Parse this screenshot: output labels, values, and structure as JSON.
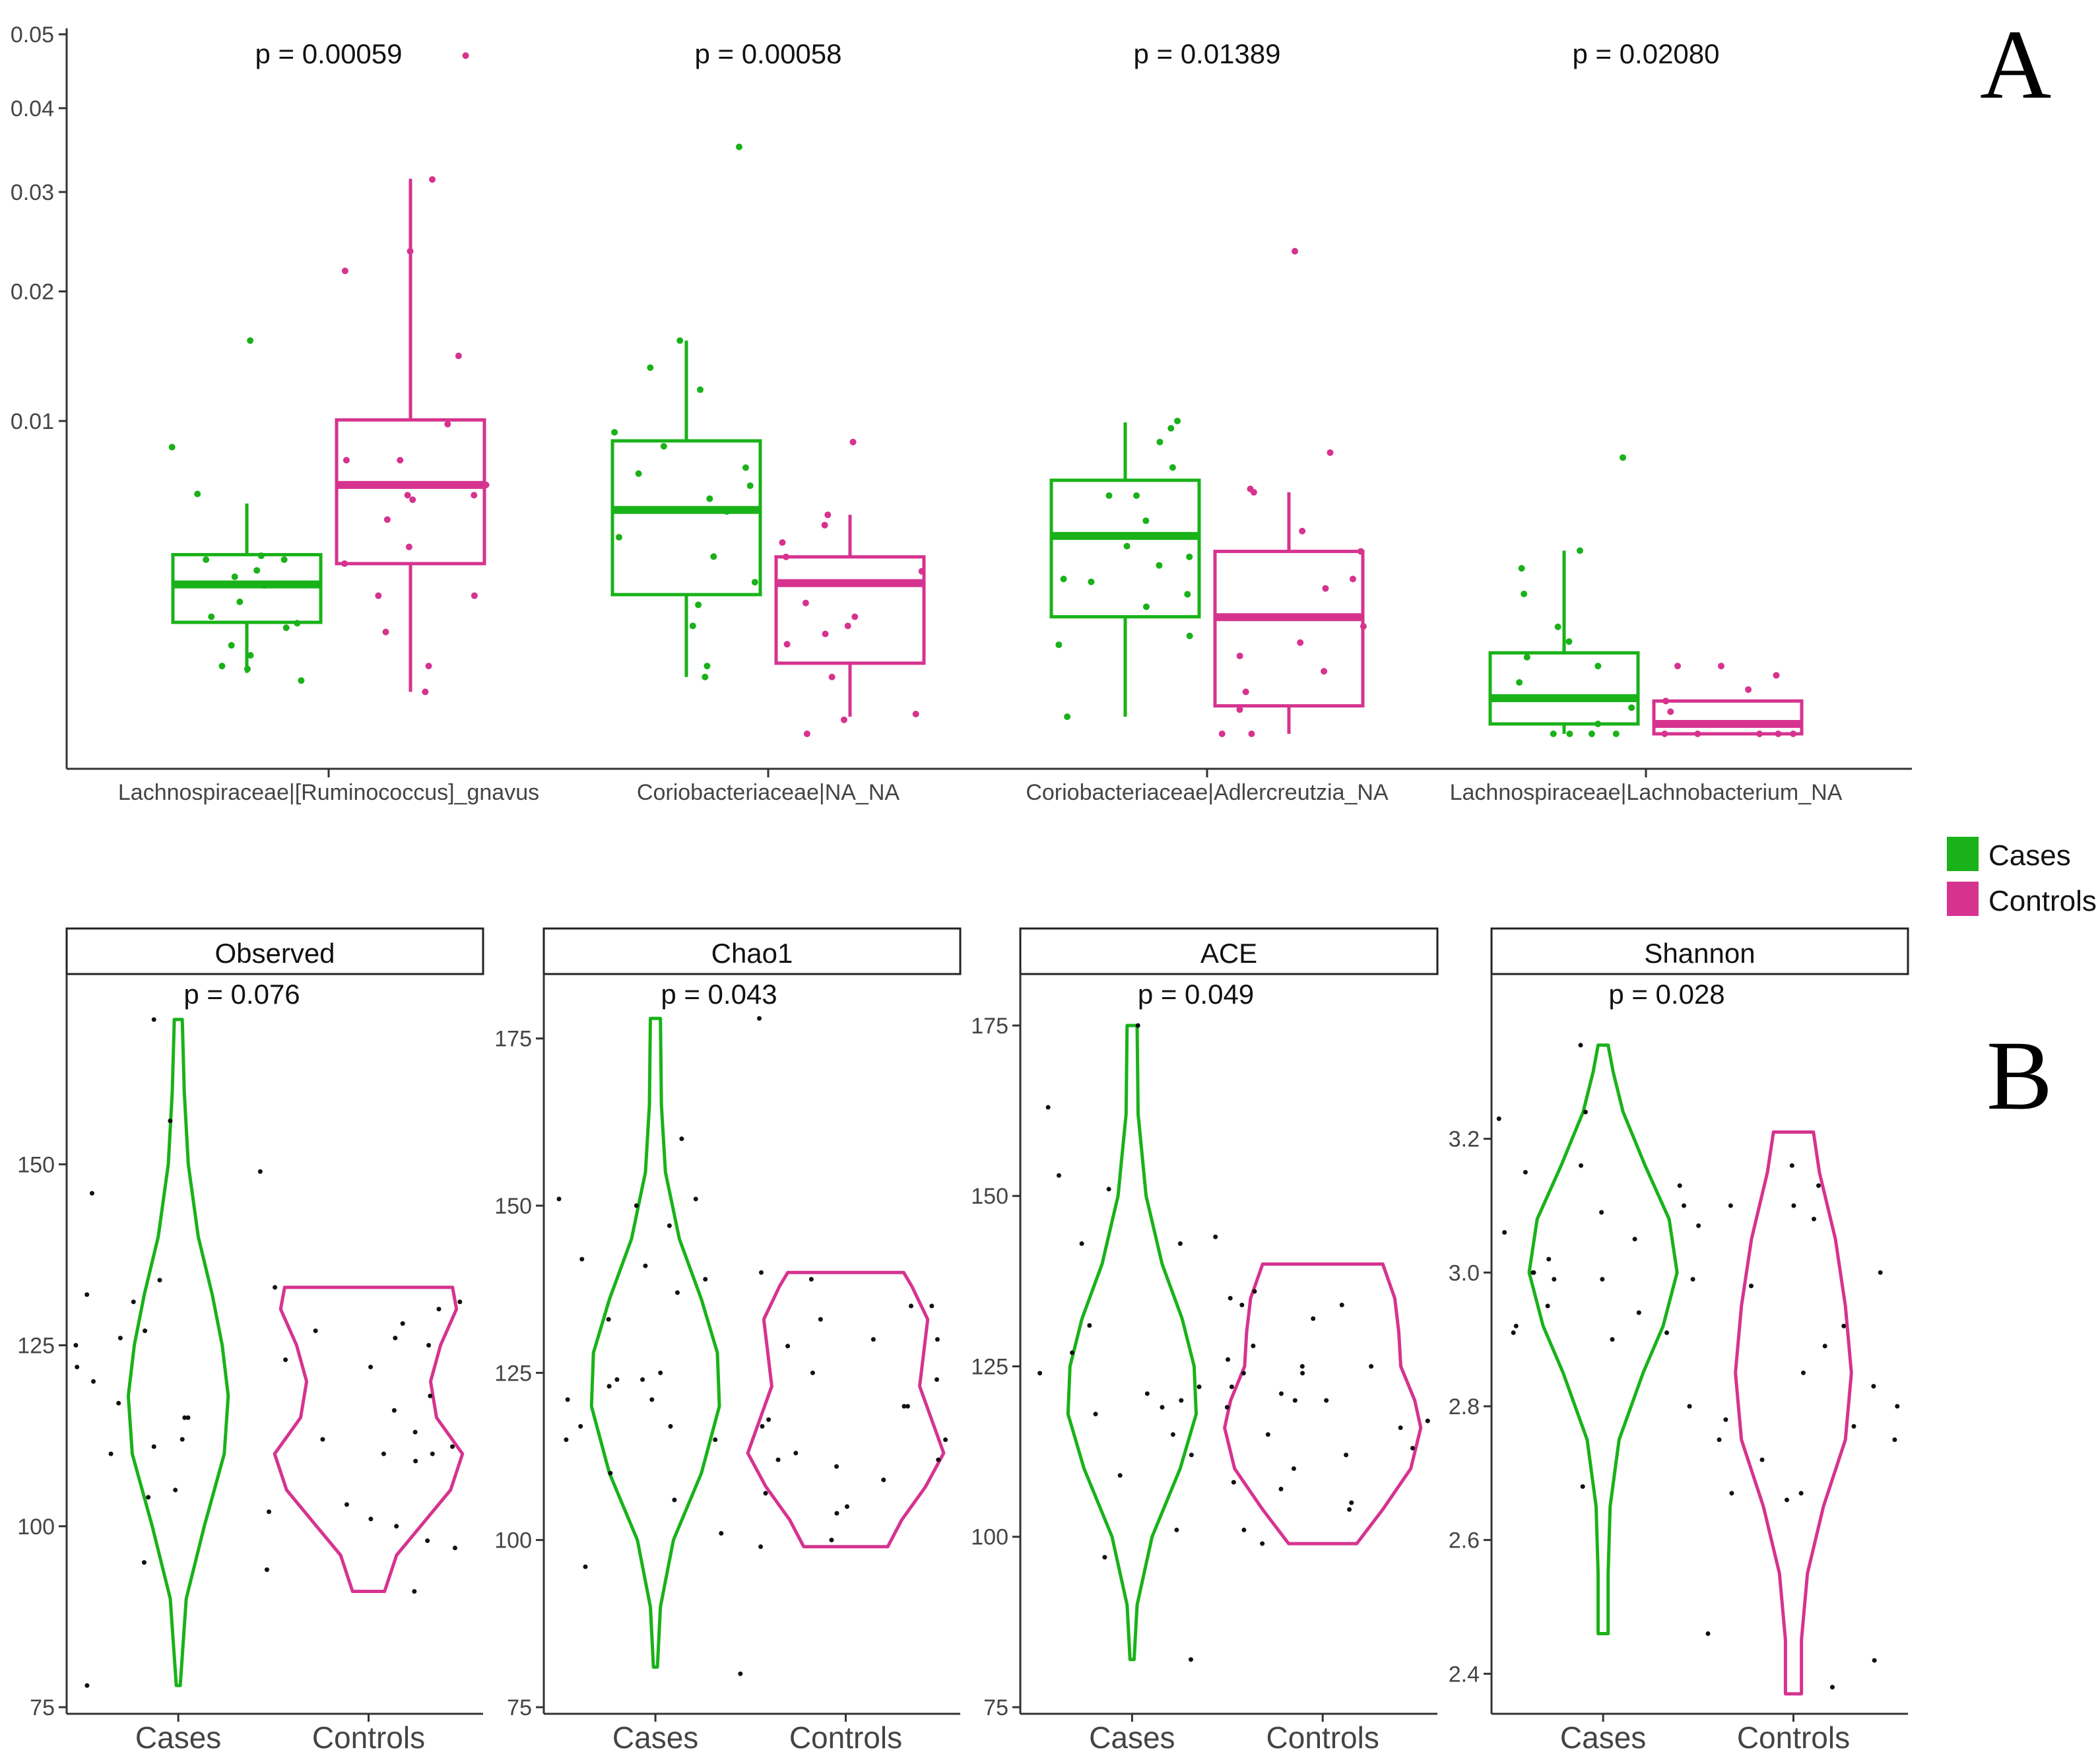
{
  "figure": {
    "panel_a_label": "A",
    "panel_b_label": "B"
  },
  "colors": {
    "cases": "#19b219",
    "controls": "#d6338f",
    "points_b": "#111111"
  },
  "legend": {
    "items": [
      {
        "label": "Cases",
        "color": "#19b219"
      },
      {
        "label": "Controls",
        "color": "#d6338f"
      }
    ]
  },
  "chart_data": [
    {
      "type": "box",
      "panel": "A",
      "scale": "sqrt",
      "ylim": [
        0,
        0.05
      ],
      "yticks": [
        0.01,
        0.02,
        0.03,
        0.04,
        0.05
      ],
      "ytick_labels": [
        "0.01",
        "0.02",
        "0.03",
        "0.04",
        "0.05"
      ],
      "series_names": [
        "Cases",
        "Controls"
      ],
      "groups": [
        {
          "label": "Lachnospiraceae|[Ruminococcus]_gnavus",
          "pvalue": "p = 0.00059",
          "boxes": [
            {
              "series": "Cases",
              "whisker_low": 0.00038,
              "q1": 0.00127,
              "median": 0.00228,
              "q3": 0.00328,
              "whisker_high": 0.00542,
              "points": [
                0.00588,
                0.0031,
                0.00273,
                0.00178,
                0.0014,
                0.00125,
                0.00115,
                0.00043,
                0.00063,
                0.0158,
                0.0084,
                0.00324,
                0.00225,
                0.0008,
                0.00029,
                0.00047,
                0.00252,
                0.0031
              ]
            },
            {
              "series": "Controls",
              "whisker_low": 0.00018,
              "q1": 0.00296,
              "median": 0.00633,
              "q3": 0.01007,
              "whisker_high": 0.03148,
              "points": [
                0.047,
                0.0314,
                0.0219,
                0.0238,
                0.0146,
                0.0098,
                0.00765,
                0.00765,
                0.00633,
                0.00582,
                0.00582,
                0.00469,
                0.00357,
                0.00296,
                0.00195,
                0.00195,
                0.00106,
                0.00047,
                0.00018,
                0.0056
              ]
            }
          ]
        },
        {
          "label": "Coriobacteriaceae|NA_NA",
          "pvalue": "p = 0.00058",
          "boxes": [
            {
              "series": "Cases",
              "whisker_low": 0.00033,
              "q1": 0.00198,
              "median": 0.00512,
              "q3": 0.00877,
              "whisker_high": 0.0158,
              "points": [
                0.0352,
                0.0158,
                0.0137,
                0.0121,
                0.00929,
                0.00845,
                0.00724,
                0.00692,
                0.00629,
                0.00565,
                0.00505,
                0.00395,
                0.00321,
                0.00235,
                0.0017,
                0.00119,
                0.00047,
                0.00033
              ]
            },
            {
              "series": "Controls",
              "whisker_low": 3e-05,
              "q1": 0.00051,
              "median": 0.00232,
              "q3": 0.0032,
              "whisker_high": 0.0049,
              "points": [
                0.0087,
                0.0049,
                0.00445,
                0.00374,
                0.0032,
                0.0027,
                0.00232,
                0.00175,
                0.0014,
                0.00119,
                0.00102,
                0.00082,
                0.00033,
                4e-05,
                2e-05,
                0.0
              ]
            }
          ]
        },
        {
          "label": "Coriobacteriaceae|Adlercreutzia_NA",
          "pvalue": "p = 0.01389",
          "boxes": [
            {
              "series": "Cases",
              "whisker_low": 3e-05,
              "q1": 0.0014,
              "median": 0.004,
              "q3": 0.00657,
              "whisker_high": 0.00991,
              "points": [
                0.01,
                0.00954,
                0.0087,
                0.00725,
                0.0058,
                0.0058,
                0.00464,
                0.0036,
                0.0032,
                0.0029,
                0.00245,
                0.00236,
                0.00199,
                0.00165,
                0.00098,
                0.00081,
                3e-05
              ]
            },
            {
              "series": "Controls",
              "whisker_low": 0.0,
              "q1": 8e-05,
              "median": 0.00139,
              "q3": 0.0034,
              "whisker_high": 0.00596,
              "points": [
                0.0238,
                0.00808,
                0.00613,
                0.00596,
                0.0042,
                0.0034,
                0.00245,
                0.00216,
                0.00139,
                0.00118,
                0.00085,
                0.00062,
                0.0004,
                0.00018,
                6e-05,
                0.0,
                0.0
              ]
            }
          ]
        },
        {
          "label": "Lachnospiraceae|Lachnobacterium_NA",
          "pvalue": "p = 0.02080",
          "boxes": [
            {
              "series": "Cases",
              "whisker_low": 0.0,
              "q1": 1e-05,
              "median": 0.00013,
              "q3": 0.00067,
              "whisker_high": 0.00343,
              "points": [
                0.0078,
                0.00343,
                0.0028,
                0.002,
                0.00117,
                0.00087,
                0.0006,
                0.00047,
                0.00027,
                0.00013,
                7e-05,
                1e-05,
                0.0,
                0.0,
                0.0,
                0.0
              ]
            },
            {
              "series": "Controls",
              "whisker_low": 0.0,
              "q1": 0.0,
              "median": 1e-05,
              "q3": 0.00011,
              "whisker_high": 0.00011,
              "points": [
                0.00047,
                0.00047,
                0.00035,
                0.0002,
                0.00011,
                5e-05,
                1e-05,
                0.0,
                0.0,
                0.0,
                0.0,
                0.0
              ]
            }
          ]
        }
      ]
    },
    {
      "type": "violin",
      "panel": "B",
      "title": "Observed",
      "pvalue": "p = 0.076",
      "ylim": [
        75,
        172
      ],
      "yticks": [
        75,
        100,
        125,
        150
      ],
      "ytick_labels": [
        "75",
        "100",
        "125",
        "150"
      ],
      "categories": [
        "Cases",
        "Controls"
      ],
      "violins": [
        {
          "series": "Cases",
          "profile": [
            [
              78,
              0.02
            ],
            [
              90,
              0.08
            ],
            [
              100,
              0.26
            ],
            [
              110,
              0.46
            ],
            [
              118,
              0.5
            ],
            [
              125,
              0.44
            ],
            [
              132,
              0.34
            ],
            [
              140,
              0.2
            ],
            [
              150,
              0.1
            ],
            [
              160,
              0.06
            ],
            [
              170,
              0.04
            ]
          ]
        },
        {
          "series": "Controls",
          "profile": [
            [
              91,
              0.16
            ],
            [
              96,
              0.28
            ],
            [
              100,
              0.52
            ],
            [
              105,
              0.82
            ],
            [
              110,
              0.94
            ],
            [
              115,
              0.68
            ],
            [
              120,
              0.62
            ],
            [
              125,
              0.72
            ],
            [
              130,
              0.88
            ],
            [
              133,
              0.84
            ]
          ]
        }
      ],
      "points": [
        {
          "series": "Cases",
          "values": [
            170,
            149,
            134,
            131,
            125,
            122,
            115,
            112,
            104,
            95,
            78,
            146,
            133,
            132,
            117,
            115,
            105,
            127,
            120,
            111,
            94,
            156,
            126,
            110
          ]
        },
        {
          "series": "Controls",
          "values": [
            128,
            127,
            125,
            122,
            116,
            109,
            102,
            98,
            126,
            131,
            130,
            118,
            113,
            110,
            110,
            103,
            100,
            101,
            97,
            91,
            123,
            112,
            111
          ]
        }
      ]
    },
    {
      "type": "violin",
      "panel": "B",
      "title": "Chao1",
      "pvalue": "p = 0.043",
      "ylim": [
        75,
        180
      ],
      "yticks": [
        75,
        100,
        125,
        150,
        175
      ],
      "ytick_labels": [
        "75",
        "100",
        "125",
        "150",
        "175"
      ],
      "categories": [
        "Cases",
        "Controls"
      ],
      "violins": [
        {
          "series": "Cases",
          "profile": [
            [
              81,
              0.02
            ],
            [
              90,
              0.05
            ],
            [
              100,
              0.18
            ],
            [
              110,
              0.46
            ],
            [
              120,
              0.64
            ],
            [
              128,
              0.62
            ],
            [
              136,
              0.46
            ],
            [
              145,
              0.24
            ],
            [
              155,
              0.1
            ],
            [
              165,
              0.06
            ],
            [
              178,
              0.05
            ]
          ]
        },
        {
          "series": "Controls",
          "profile": [
            [
              99,
              0.42
            ],
            [
              103,
              0.56
            ],
            [
              108,
              0.8
            ],
            [
              113,
              0.98
            ],
            [
              118,
              0.86
            ],
            [
              123,
              0.74
            ],
            [
              128,
              0.78
            ],
            [
              133,
              0.82
            ],
            [
              138,
              0.66
            ],
            [
              140,
              0.58
            ]
          ]
        }
      ],
      "points": [
        {
          "series": "Cases",
          "values": [
            151,
            150,
            142,
            139,
            137,
            133,
            125,
            124,
            124,
            117,
            115,
            110,
            123,
            121,
            115,
            96,
            151,
            147,
            160,
            178,
            141,
            121,
            117,
            101,
            80,
            106
          ]
        },
        {
          "series": "Controls",
          "values": [
            135,
            130,
            125,
            120,
            112,
            107,
            105,
            100,
            140,
            139,
            133,
            129,
            124,
            120,
            115,
            113,
            109,
            104,
            112,
            135,
            130,
            117,
            118,
            111,
            99
          ]
        }
      ]
    },
    {
      "type": "violin",
      "panel": "B",
      "title": "ACE",
      "pvalue": "p = 0.049",
      "ylim": [
        75,
        178
      ],
      "yticks": [
        75,
        100,
        125,
        150,
        175
      ],
      "ytick_labels": [
        "75",
        "100",
        "125",
        "150",
        "175"
      ],
      "categories": [
        "Cases",
        "Controls"
      ],
      "violins": [
        {
          "series": "Cases",
          "profile": [
            [
              82,
              0.02
            ],
            [
              90,
              0.05
            ],
            [
              100,
              0.2
            ],
            [
              110,
              0.48
            ],
            [
              118,
              0.64
            ],
            [
              125,
              0.62
            ],
            [
              132,
              0.5
            ],
            [
              140,
              0.3
            ],
            [
              150,
              0.14
            ],
            [
              162,
              0.06
            ],
            [
              175,
              0.05
            ]
          ]
        },
        {
          "series": "Controls",
          "profile": [
            [
              99,
              0.34
            ],
            [
              104,
              0.6
            ],
            [
              110,
              0.88
            ],
            [
              116,
              0.98
            ],
            [
              120,
              0.92
            ],
            [
              125,
              0.78
            ],
            [
              130,
              0.76
            ],
            [
              135,
              0.72
            ],
            [
              140,
              0.6
            ]
          ]
        }
      ],
      "points": [
        {
          "series": "Cases",
          "values": [
            175,
            135,
            127,
            120,
            119,
            115,
            109,
            101,
            151,
            143,
            131,
            124,
            122,
            122,
            121,
            118,
            112,
            97,
            82,
            163,
            144,
            143,
            153,
            126
          ]
        },
        {
          "series": "Controls",
          "values": [
            124,
            120,
            116,
            112,
            104,
            99,
            136,
            134,
            132,
            128,
            125,
            121,
            120,
            115,
            110,
            108,
            105,
            101,
            124,
            134,
            125,
            117,
            113,
            107,
            119
          ]
        }
      ]
    },
    {
      "type": "violin",
      "panel": "B",
      "title": "Shannon",
      "pvalue": "p = 0.028",
      "ylim": [
        2.35,
        3.4
      ],
      "yticks": [
        2.4,
        2.6,
        2.8,
        3.0,
        3.2
      ],
      "ytick_labels": [
        "2.4",
        "2.6",
        "2.8",
        "3.0",
        "3.2"
      ],
      "categories": [
        "Cases",
        "Controls"
      ],
      "violins": [
        {
          "series": "Cases",
          "profile": [
            [
              2.46,
              0.05
            ],
            [
              2.55,
              0.05
            ],
            [
              2.65,
              0.07
            ],
            [
              2.75,
              0.16
            ],
            [
              2.85,
              0.4
            ],
            [
              2.92,
              0.6
            ],
            [
              3.0,
              0.74
            ],
            [
              3.08,
              0.66
            ],
            [
              3.16,
              0.42
            ],
            [
              3.24,
              0.2
            ],
            [
              3.3,
              0.1
            ],
            [
              3.34,
              0.05
            ]
          ]
        },
        {
          "series": "Controls",
          "profile": [
            [
              2.37,
              0.08
            ],
            [
              2.45,
              0.08
            ],
            [
              2.55,
              0.14
            ],
            [
              2.65,
              0.3
            ],
            [
              2.75,
              0.52
            ],
            [
              2.85,
              0.58
            ],
            [
              2.95,
              0.52
            ],
            [
              3.05,
              0.42
            ],
            [
              3.15,
              0.26
            ],
            [
              3.21,
              0.2
            ]
          ]
        }
      ],
      "points": [
        {
          "series": "Cases",
          "values": [
            3.34,
            3.16,
            3.13,
            3.09,
            3.06,
            3.0,
            2.99,
            2.94,
            2.92,
            2.8,
            2.68,
            2.46,
            3.24,
            3.23,
            3.15,
            3.1,
            3.05,
            3.02,
            2.95,
            2.91,
            2.91,
            2.9,
            2.99,
            3.0
          ]
        },
        {
          "series": "Controls",
          "values": [
            3.08,
            2.42,
            2.38,
            3.16,
            3.1,
            3.07,
            3.0,
            2.92,
            2.89,
            2.85,
            2.8,
            2.77,
            2.75,
            2.72,
            2.67,
            2.67,
            2.66,
            3.13,
            3.1,
            2.99,
            2.98,
            2.78,
            2.75,
            2.83
          ]
        }
      ]
    }
  ]
}
